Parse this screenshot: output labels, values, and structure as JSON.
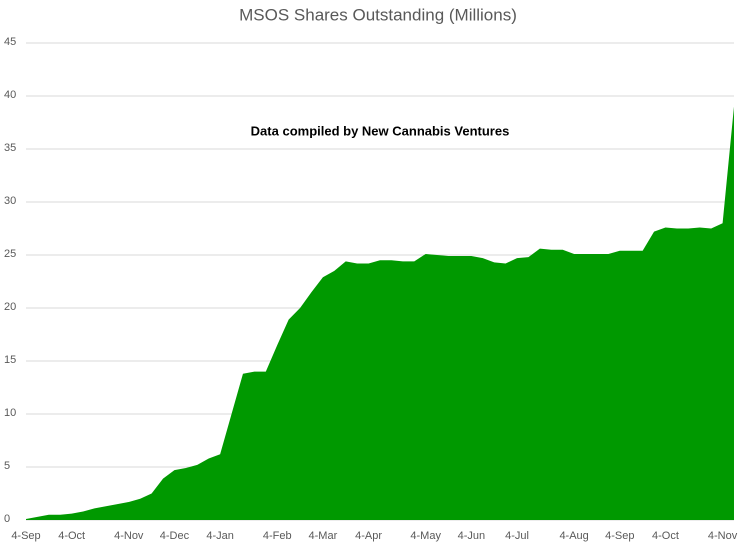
{
  "chart_data": {
    "type": "area",
    "title": "MSOS Shares Outstanding (Millions)",
    "annotation": "Data compiled by New Cannabis Ventures",
    "categories": [
      "4-Sep",
      null,
      null,
      null,
      "4-Oct",
      null,
      null,
      null,
      null,
      "4-Nov",
      null,
      null,
      null,
      "4-Dec",
      null,
      null,
      null,
      "4-Jan",
      null,
      null,
      null,
      null,
      "4-Feb",
      null,
      null,
      null,
      "4-Mar",
      null,
      null,
      null,
      "4-Apr",
      null,
      null,
      null,
      null,
      "4-May",
      null,
      null,
      null,
      "4-Jun",
      null,
      null,
      null,
      "4-Jul",
      null,
      null,
      null,
      null,
      "4-Aug",
      null,
      null,
      null,
      "4-Sep",
      null,
      null,
      null,
      "4-Oct",
      null,
      null,
      null,
      null,
      "4-Nov",
      null
    ],
    "values": [
      0.1,
      0.3,
      0.5,
      0.5,
      0.6,
      0.8,
      1.1,
      1.3,
      1.5,
      1.7,
      2.0,
      2.5,
      3.9,
      4.7,
      4.9,
      5.2,
      5.8,
      6.2,
      10,
      13.8,
      14.0,
      14.0,
      16.5,
      18.9,
      20,
      21.5,
      22.9,
      23.5,
      24.4,
      24.2,
      24.2,
      24.5,
      24.5,
      24.4,
      24.4,
      25.1,
      25.0,
      24.9,
      24.9,
      24.9,
      24.7,
      24.3,
      24.2,
      24.7,
      24.8,
      25.6,
      25.5,
      25.5,
      25.1,
      25.1,
      25.1,
      25.1,
      25.4,
      25.4,
      25.4,
      27.2,
      27.6,
      27.5,
      27.5,
      27.6,
      27.5,
      28.0,
      39.0
    ],
    "color": "#009900",
    "ylim": [
      0,
      45
    ],
    "yticks": [
      0,
      5,
      10,
      15,
      20,
      25,
      30,
      35,
      40,
      45
    ],
    "grid": true
  }
}
